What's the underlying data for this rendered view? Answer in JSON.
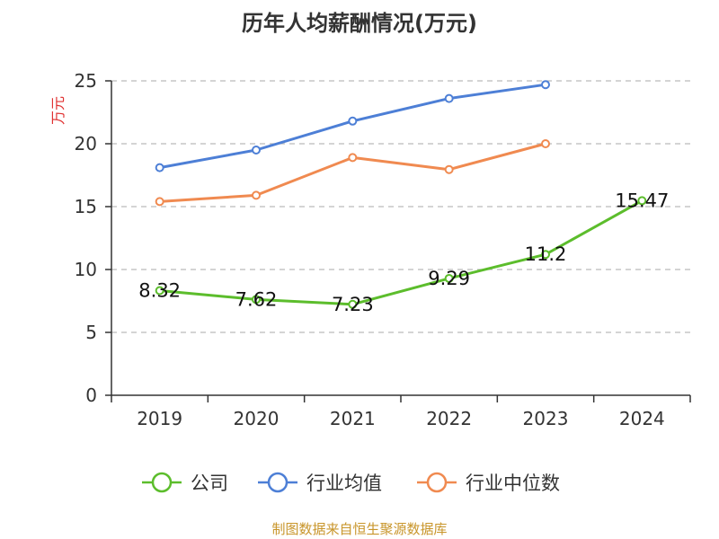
{
  "chart_data": {
    "type": "line",
    "title": "历年人均薪酬情况(万元)",
    "ylabel": "万元",
    "xlabel": "",
    "categories": [
      "2019",
      "2020",
      "2021",
      "2022",
      "2023",
      "2024"
    ],
    "ylim": [
      0,
      25
    ],
    "yticks": [
      0,
      5,
      10,
      15,
      20,
      25
    ],
    "grid": true,
    "legend_position": "bottom",
    "series": [
      {
        "name": "公司",
        "color": "#5cbd2c",
        "values": [
          8.32,
          7.62,
          7.23,
          9.29,
          11.2,
          15.47
        ],
        "labels": [
          "8.32",
          "7.62",
          "7.23",
          "9.29",
          "11.2",
          "15.47"
        ]
      },
      {
        "name": "行业均值",
        "color": "#4d7fd6",
        "values": [
          18.1,
          19.5,
          21.8,
          23.6,
          24.7,
          null
        ]
      },
      {
        "name": "行业中位数",
        "color": "#f08a50",
        "values": [
          15.4,
          15.9,
          18.9,
          17.95,
          20.0,
          null
        ]
      }
    ]
  },
  "colors": {
    "ylabel": "#e03030",
    "source": "#c8952a",
    "axis": "#333333",
    "grid": "#bbbbbb"
  },
  "footer": {
    "source": "制图数据来自恒生聚源数据库"
  }
}
